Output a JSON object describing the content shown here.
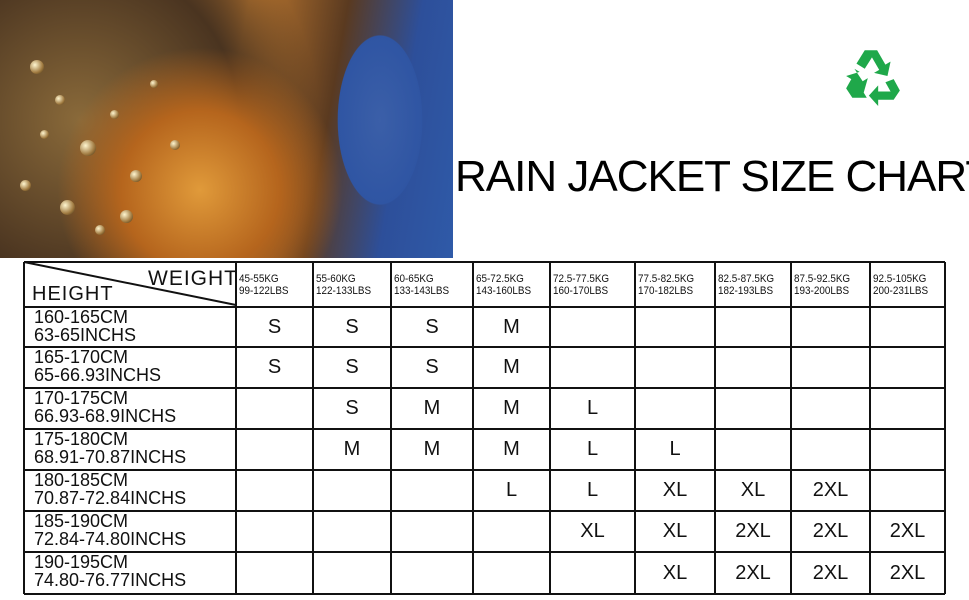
{
  "title": "RAIN JACKET SIZE CHART",
  "colors": {
    "recycle": "#1fa84a",
    "grid": "#111111"
  },
  "icons": {
    "recycle": "recycle-icon"
  },
  "table": {
    "corner": {
      "weight": "WEIGHT",
      "height": "HEIGHT"
    },
    "columns": [
      {
        "kg": "45-55KG",
        "lbs": "99-122LBS"
      },
      {
        "kg": "55-60KG",
        "lbs": "122-133LBS"
      },
      {
        "kg": "60-65KG",
        "lbs": "133-143LBS"
      },
      {
        "kg": "65-72.5KG",
        "lbs": "143-160LBS"
      },
      {
        "kg": "72.5-77.5KG",
        "lbs": "160-170LBS"
      },
      {
        "kg": "77.5-82.5KG",
        "lbs": "170-182LBS"
      },
      {
        "kg": "82.5-87.5KG",
        "lbs": "182-193LBS"
      },
      {
        "kg": "87.5-92.5KG",
        "lbs": "193-200LBS"
      },
      {
        "kg": "92.5-105KG",
        "lbs": "200-231LBS"
      }
    ],
    "rows": [
      {
        "cm": "160-165CM",
        "in": "63-65INCHS",
        "sizes": [
          "S",
          "S",
          "S",
          "M",
          "",
          "",
          "",
          "",
          ""
        ]
      },
      {
        "cm": "165-170CM",
        "in": "65-66.93INCHS",
        "sizes": [
          "S",
          "S",
          "S",
          "M",
          "",
          "",
          "",
          "",
          ""
        ]
      },
      {
        "cm": "170-175CM",
        "in": "66.93-68.9INCHS",
        "sizes": [
          "",
          "S",
          "M",
          "M",
          "L",
          "",
          "",
          "",
          ""
        ]
      },
      {
        "cm": "175-180CM",
        "in": "68.91-70.87INCHS",
        "sizes": [
          "",
          "M",
          "M",
          "M",
          "L",
          "L",
          "",
          "",
          ""
        ]
      },
      {
        "cm": "180-185CM",
        "in": "70.87-72.84INCHS",
        "sizes": [
          "",
          "",
          "",
          "L",
          "L",
          "XL",
          "XL",
          "2XL",
          ""
        ]
      },
      {
        "cm": "185-190CM",
        "in": "72.84-74.80INCHS",
        "sizes": [
          "",
          "",
          "",
          "",
          "XL",
          "XL",
          "2XL",
          "2XL",
          "2XL"
        ]
      },
      {
        "cm": "190-195CM",
        "in": "74.80-76.77INCHS",
        "sizes": [
          "",
          "",
          "",
          "",
          "",
          "XL",
          "2XL",
          "2XL",
          "2XL"
        ]
      }
    ]
  }
}
